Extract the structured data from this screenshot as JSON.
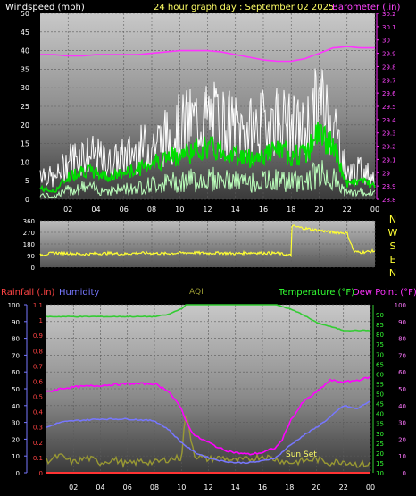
{
  "colors": {
    "background": "#000000",
    "wind_gust": "#ffffff",
    "wind_avg": "#00dd00",
    "wind_base": "#bbffbb",
    "barometer": "#ff33ff",
    "direction": "#ffff33",
    "rain": "#ff3333",
    "humidity": "#7777ff",
    "aqi": "#999933",
    "temperature": "#33cc33",
    "dewpoint": "#ff00ff",
    "label_windspeed": "#ffffff",
    "label_title": "#ffff66",
    "label_barometer": "#ff44ff",
    "label_temperature": "#33ff33",
    "label_dewpoint": "#ff33ff",
    "label_humidity": "#7777ff",
    "label_aqi": "#999933",
    "label_rain": "#ff4444",
    "label_compass": "#ffff33"
  },
  "labels": {
    "windspeed": "Windspeed (mph)",
    "title": "24 hour graph day : September 02 2025",
    "barometer": "Barometer (.in)",
    "rainfall": "Rainfall (.in)",
    "humidity": "Humidity",
    "aqi": "AQI",
    "temperature": "Temperature (°F)",
    "dewpoint": "Dew Point (°F)",
    "sunset": "Sun Set",
    "compass": [
      "N",
      "W",
      "S",
      "E",
      "N"
    ]
  },
  "chart_data": [
    {
      "type": "line",
      "x_ticks": [
        "02",
        "04",
        "06",
        "08",
        "10",
        "12",
        "14",
        "16",
        "18",
        "20",
        "22",
        "00"
      ],
      "y_left": {
        "label": "Windspeed (mph)",
        "ylim": [
          0,
          50
        ],
        "ticks": [
          "0",
          "5",
          "10",
          "15",
          "20",
          "25",
          "30",
          "35",
          "40",
          "45",
          "50"
        ]
      },
      "y_right": {
        "label": "Barometer (.in)",
        "ylim": [
          28.8,
          30.2
        ],
        "ticks": [
          "28.8",
          "28.9",
          "29",
          "29.1",
          "29.2",
          "29.3",
          "29.4",
          "29.5",
          "29.6",
          "29.7",
          "29.8",
          "29.9",
          "30",
          "30.1",
          "30.2"
        ]
      },
      "series": [
        {
          "name": "Barometer",
          "axis": "right",
          "x": [
            0,
            1,
            2,
            3,
            4,
            5,
            6,
            7,
            8,
            9,
            10,
            11,
            12,
            13,
            14,
            15,
            16,
            17,
            18,
            19,
            20,
            21,
            22,
            23,
            24
          ],
          "values": [
            29.89,
            29.89,
            29.88,
            29.88,
            29.89,
            29.89,
            29.89,
            29.89,
            29.9,
            29.91,
            29.92,
            29.92,
            29.92,
            29.91,
            29.89,
            29.87,
            29.85,
            29.84,
            29.84,
            29.86,
            29.9,
            29.94,
            29.95,
            29.94,
            29.94
          ]
        },
        {
          "axis": "left",
          "x": [
            0,
            1,
            2,
            3,
            4,
            5,
            6,
            7,
            8,
            9,
            10,
            11,
            12,
            13,
            14,
            15,
            16,
            17,
            18,
            19,
            20,
            21,
            22,
            23,
            24
          ],
          "values": [
            9,
            6,
            12,
            14,
            13,
            11,
            13,
            15,
            17,
            19,
            22,
            24,
            25,
            24,
            22,
            21,
            23,
            25,
            22,
            21,
            30,
            24,
            8,
            9,
            7
          ]
        },
        {
          "axis": "left",
          "x": [
            0,
            1,
            2,
            3,
            4,
            5,
            6,
            7,
            8,
            9,
            10,
            11,
            12,
            13,
            14,
            15,
            16,
            17,
            18,
            19,
            20,
            21,
            22,
            23,
            24
          ],
          "values": [
            3,
            2,
            6,
            8,
            7,
            6,
            7,
            8,
            10,
            11,
            12,
            13,
            14,
            13,
            12,
            11,
            12,
            13,
            12,
            12,
            18,
            14,
            4,
            5,
            4
          ]
        }
      ]
    },
    {
      "type": "line",
      "x_ticks": [
        "02",
        "04",
        "06",
        "08",
        "10",
        "12",
        "14",
        "16",
        "18",
        "20",
        "22",
        "00"
      ],
      "y_left": {
        "ylim": [
          0,
          360
        ],
        "ticks": [
          "0",
          "90",
          "180",
          "270",
          "360"
        ]
      },
      "series": [
        {
          "axis": "left",
          "x": [
            0,
            1,
            2,
            3,
            4,
            5,
            6,
            7,
            8,
            9,
            10,
            11,
            12,
            13,
            14,
            15,
            16,
            17,
            17.99,
            18,
            19,
            20,
            21,
            22,
            22.5,
            23,
            24
          ],
          "values": [
            95,
            110,
            108,
            100,
            105,
            108,
            102,
            110,
            108,
            105,
            110,
            112,
            108,
            110,
            105,
            112,
            110,
            108,
            90,
            320,
            300,
            285,
            270,
            265,
            120,
            115,
            125
          ]
        }
      ]
    },
    {
      "type": "line",
      "x_ticks": [
        "02",
        "04",
        "06",
        "08",
        "10",
        "12",
        "14",
        "16",
        "18",
        "20",
        "22",
        "00"
      ],
      "y_left_outer": {
        "label": "Humidity",
        "ylim": [
          0,
          100
        ],
        "ticks": [
          "0",
          "10",
          "20",
          "30",
          "40",
          "50",
          "60",
          "70",
          "80",
          "90",
          "100"
        ]
      },
      "y_left_inner": {
        "label": "Rainfall (.in)",
        "ylim": [
          0,
          1.1
        ],
        "ticks": [
          "0",
          "0.1",
          "0.2",
          "0.3",
          "0.4",
          "0.5",
          "0.6",
          "0.7",
          "0.8",
          "0.9",
          "1",
          "1.1"
        ]
      },
      "y_right_inner": {
        "label": "Temperature (°F)",
        "ylim": [
          10,
          95
        ],
        "ticks": [
          "10",
          "15",
          "20",
          "25",
          "30",
          "35",
          "40",
          "45",
          "50",
          "55",
          "60",
          "65",
          "70",
          "75",
          "80",
          "85",
          "90"
        ]
      },
      "y_right_outer": {
        "label": "Dew Point (°F)",
        "ylim": [
          0,
          100
        ],
        "ticks": [
          "0",
          "10",
          "20",
          "30",
          "40",
          "50",
          "60",
          "70",
          "80",
          "90",
          "100"
        ]
      },
      "annotations": [
        "Sun Set"
      ],
      "series": [
        {
          "name": "Temperature",
          "axis": "right_inner",
          "x": [
            0,
            2,
            4,
            6,
            8,
            9,
            10,
            10.5,
            11,
            12,
            14,
            16,
            17,
            18,
            19,
            20,
            21,
            22,
            23,
            24
          ],
          "values": [
            89,
            89,
            89,
            89,
            89,
            90,
            93,
            96,
            97,
            98,
            98,
            98,
            95,
            93,
            90,
            86,
            84,
            82,
            82,
            82
          ]
        },
        {
          "name": "Dew Point",
          "axis": "right_outer",
          "x": [
            0,
            1,
            2,
            4,
            6,
            8,
            9,
            10,
            10.5,
            11,
            12,
            13,
            14,
            15,
            16,
            17,
            17.5,
            18,
            19,
            20,
            21,
            22,
            23,
            24
          ],
          "values": [
            48,
            50,
            51,
            52,
            53,
            53,
            49,
            38,
            28,
            22,
            18,
            14,
            12,
            11,
            12,
            15,
            20,
            30,
            42,
            48,
            55,
            54,
            55,
            57
          ]
        },
        {
          "name": "Humidity",
          "axis": "left_outer",
          "x": [
            0,
            1,
            2,
            4,
            6,
            8,
            9,
            10,
            11,
            12,
            13,
            14,
            15,
            16,
            17,
            18,
            19,
            20,
            21,
            22,
            23,
            24
          ],
          "values": [
            27,
            30,
            31,
            32,
            32,
            31,
            26,
            18,
            12,
            9,
            7,
            6,
            6,
            7,
            9,
            16,
            22,
            27,
            33,
            40,
            38,
            43
          ]
        },
        {
          "name": "AQI",
          "axis": "left_outer",
          "x": [
            0,
            1,
            2,
            3,
            4,
            5,
            6,
            7,
            8,
            9,
            10,
            10.3,
            11,
            12,
            13,
            14,
            15,
            16,
            17,
            18,
            19,
            20,
            21,
            22,
            23,
            24
          ],
          "values": [
            7,
            10,
            6,
            9,
            6,
            8,
            5,
            7,
            6,
            8,
            9,
            35,
            10,
            8,
            9,
            7,
            8,
            10,
            8,
            6,
            7,
            8,
            6,
            7,
            5,
            5
          ]
        },
        {
          "name": "Rainfall",
          "axis": "left_inner",
          "x": [
            0,
            24
          ],
          "values": [
            0,
            0
          ]
        }
      ]
    }
  ]
}
